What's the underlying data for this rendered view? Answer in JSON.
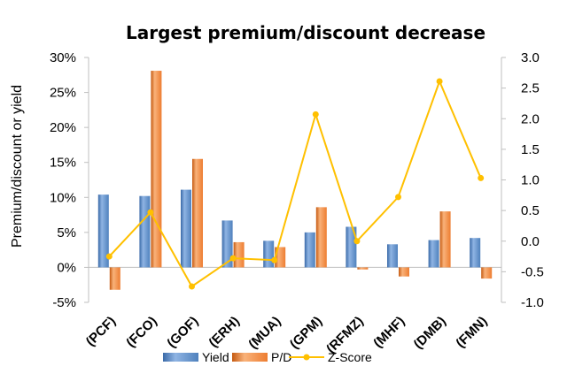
{
  "chart_data": {
    "type": "bar",
    "title": "Largest premium/discount decrease",
    "ylabel": "Premium/discount or yield",
    "y2label": "",
    "xlabel": "",
    "categories": [
      "(PCF)",
      "(FCO)",
      "(GOF)",
      "(ERH)",
      "(MUA)",
      "(GPM)",
      "(RFMZ)",
      "(MHF)",
      "(DMB)",
      "(FMN)"
    ],
    "ylim": [
      -5,
      30
    ],
    "y2lim": [
      -1.0,
      3.0
    ],
    "yticks": [
      "-5%",
      "0%",
      "5%",
      "10%",
      "15%",
      "20%",
      "25%",
      "30%"
    ],
    "y2ticks": [
      "-1.0",
      "-0.5",
      "0.0",
      "0.5",
      "1.0",
      "1.5",
      "2.0",
      "2.5",
      "3.0"
    ],
    "grid": false,
    "legend_position": "bottom",
    "series": [
      {
        "name": "Yield",
        "kind": "bar",
        "axis": "left",
        "color": "#4f81bd",
        "values": [
          10.4,
          10.2,
          11.1,
          6.7,
          3.8,
          5.0,
          5.8,
          3.3,
          3.9,
          4.2
        ]
      },
      {
        "name": "P/D",
        "kind": "bar",
        "axis": "left",
        "color": "#ed7d31",
        "values": [
          -3.2,
          28.1,
          15.5,
          3.6,
          2.9,
          8.6,
          -0.3,
          -1.3,
          8.0,
          -1.6
        ]
      },
      {
        "name": "Z-Score",
        "kind": "line",
        "axis": "right",
        "color": "#ffc000",
        "values": [
          -0.25,
          0.47,
          -0.74,
          -0.28,
          -0.31,
          2.07,
          0.0,
          0.72,
          2.61,
          1.03
        ]
      }
    ]
  }
}
